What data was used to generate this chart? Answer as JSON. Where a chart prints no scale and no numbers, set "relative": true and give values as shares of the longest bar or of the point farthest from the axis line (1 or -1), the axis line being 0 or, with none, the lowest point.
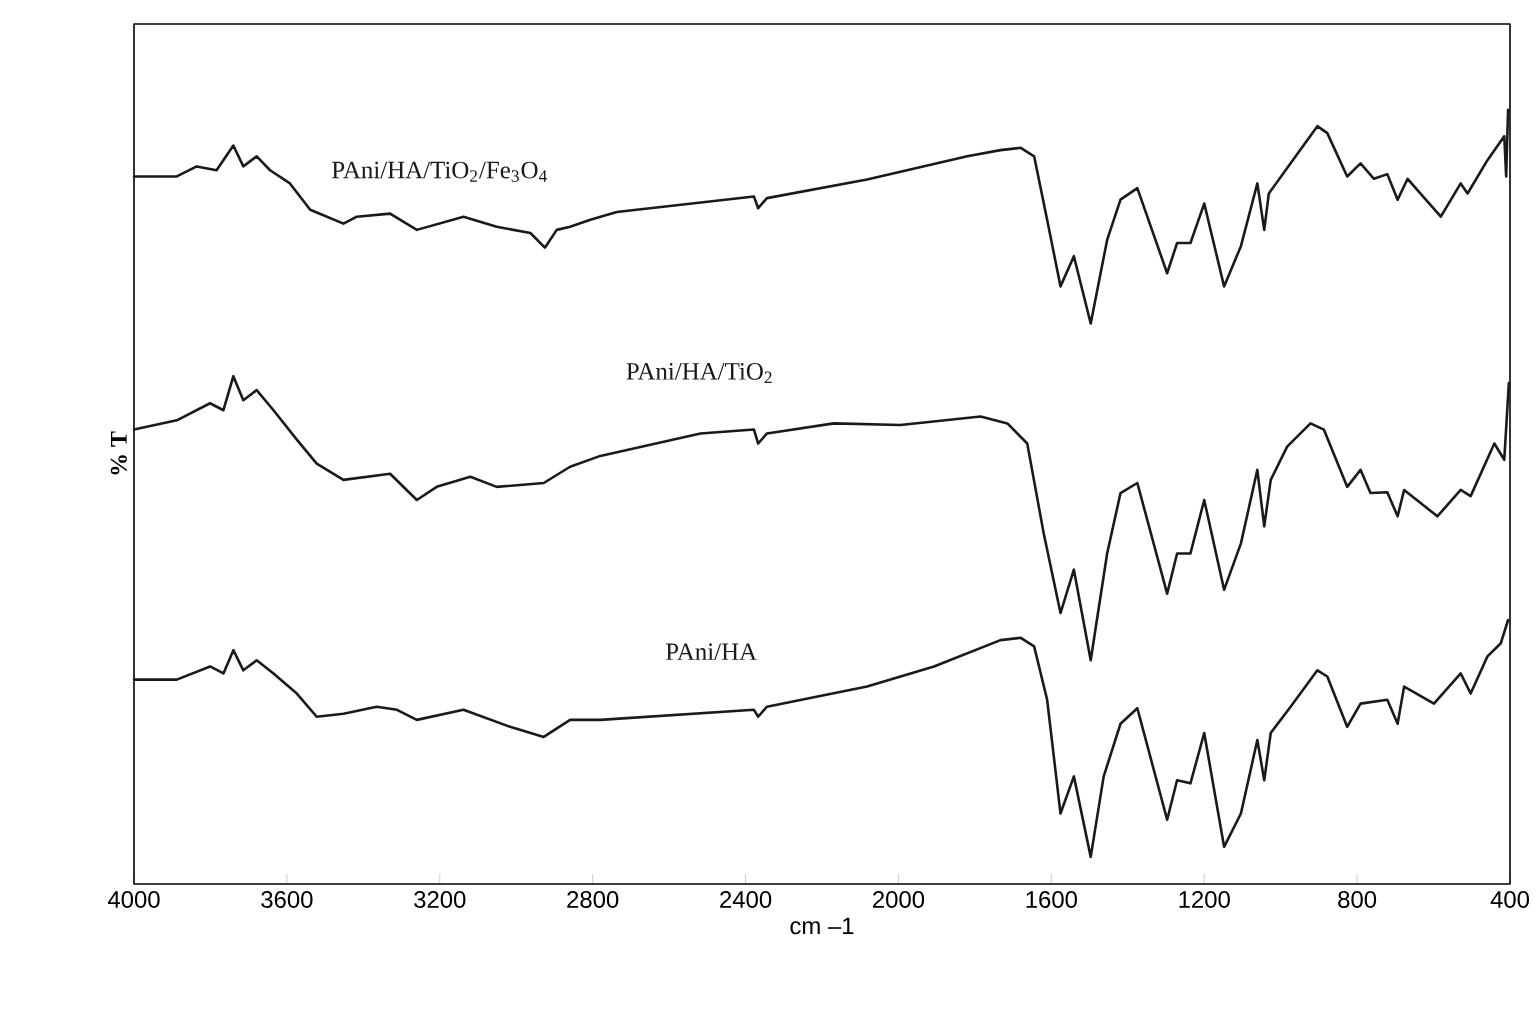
{
  "chart_data": {
    "type": "line",
    "relative": true,
    "xlabel": "cm –1",
    "ylabel": "% T",
    "xlim": [
      4000,
      400
    ],
    "xticks": [
      4000,
      3600,
      3200,
      2800,
      2400,
      2000,
      1600,
      1200,
      800,
      400
    ],
    "series": [
      {
        "name": "PAni/HA/TiO$_{2}$/Fe$_{3}$O$_{4}$",
        "color": "#1a1a1a",
        "x": [
          4000,
          3888,
          3836,
          3784,
          3740,
          3714,
          3679,
          3644,
          3592,
          3539,
          3452,
          3417,
          3330,
          3260,
          3138,
          3051,
          2963,
          2925,
          2894,
          2859,
          2806,
          2737,
          2378,
          2367,
          2344,
          2082,
          1820,
          1733,
          1680,
          1645,
          1611,
          1576,
          1541,
          1497,
          1454,
          1419,
          1375,
          1297,
          1271,
          1236,
          1200,
          1148,
          1104,
          1061,
          1043,
          1031,
          974,
          904,
          878,
          826,
          791,
          756,
          721,
          694,
          668,
          581,
          529,
          511,
          459,
          415,
          410,
          405
        ],
        "values": [
          0.914,
          0.914,
          0.927,
          0.922,
          0.954,
          0.927,
          0.94,
          0.922,
          0.905,
          0.871,
          0.853,
          0.862,
          0.866,
          0.845,
          0.862,
          0.849,
          0.841,
          0.822,
          0.845,
          0.849,
          0.858,
          0.868,
          0.888,
          0.873,
          0.886,
          0.91,
          0.94,
          0.948,
          0.951,
          0.94,
          0.858,
          0.772,
          0.811,
          0.724,
          0.832,
          0.884,
          0.899,
          0.789,
          0.828,
          0.828,
          0.879,
          0.772,
          0.824,
          0.905,
          0.845,
          0.892,
          0.931,
          0.979,
          0.97,
          0.914,
          0.931,
          0.911,
          0.917,
          0.884,
          0.911,
          0.862,
          0.905,
          0.892,
          0.935,
          0.966,
          0.914,
          1
        ]
      },
      {
        "name": "PAni/HA/TiO$_{2}$",
        "color": "#1a1a1a",
        "x": [
          4000,
          3888,
          3801,
          3766,
          3740,
          3714,
          3679,
          3635,
          3574,
          3522,
          3452,
          3330,
          3260,
          3208,
          3120,
          3051,
          2928,
          2859,
          2780,
          2518,
          2378,
          2367,
          2344,
          2169,
          1995,
          1785,
          1715,
          1663,
          1620,
          1576,
          1541,
          1497,
          1454,
          1419,
          1375,
          1297,
          1271,
          1236,
          1200,
          1148,
          1104,
          1061,
          1043,
          1026,
          983,
          922,
          887,
          826,
          791,
          765,
          721,
          694,
          677,
          590,
          529,
          503,
          441,
          415,
          403
        ],
        "values": [
          0.587,
          0.599,
          0.621,
          0.612,
          0.656,
          0.625,
          0.638,
          0.612,
          0.574,
          0.543,
          0.522,
          0.53,
          0.496,
          0.513,
          0.526,
          0.513,
          0.518,
          0.539,
          0.553,
          0.582,
          0.587,
          0.569,
          0.582,
          0.595,
          0.593,
          0.604,
          0.595,
          0.569,
          0.453,
          0.35,
          0.406,
          0.289,
          0.427,
          0.505,
          0.518,
          0.375,
          0.427,
          0.427,
          0.496,
          0.38,
          0.44,
          0.535,
          0.462,
          0.522,
          0.565,
          0.595,
          0.587,
          0.513,
          0.535,
          0.505,
          0.506,
          0.475,
          0.509,
          0.475,
          0.509,
          0.501,
          0.569,
          0.548,
          0.647
        ]
      },
      {
        "name": "PAni/HA",
        "color": "#1a1a1a",
        "x": [
          4000,
          3888,
          3801,
          3766,
          3740,
          3714,
          3679,
          3635,
          3574,
          3522,
          3452,
          3365,
          3312,
          3260,
          3138,
          3016,
          2928,
          2859,
          2780,
          2378,
          2367,
          2344,
          2082,
          1907,
          1733,
          1680,
          1645,
          1611,
          1576,
          1541,
          1497,
          1463,
          1419,
          1375,
          1297,
          1271,
          1236,
          1200,
          1148,
          1104,
          1061,
          1043,
          1026,
          974,
          904,
          878,
          826,
          791,
          721,
          694,
          677,
          599,
          529,
          503,
          459,
          424,
          405
        ],
        "values": [
          0.264,
          0.264,
          0.281,
          0.272,
          0.302,
          0.276,
          0.289,
          0.272,
          0.246,
          0.216,
          0.22,
          0.229,
          0.225,
          0.212,
          0.225,
          0.203,
          0.19,
          0.212,
          0.212,
          0.225,
          0.216,
          0.229,
          0.255,
          0.281,
          0.315,
          0.318,
          0.307,
          0.238,
          0.091,
          0.139,
          0.035,
          0.139,
          0.207,
          0.227,
          0.083,
          0.134,
          0.13,
          0.195,
          0.048,
          0.091,
          0.186,
          0.134,
          0.195,
          0.229,
          0.276,
          0.268,
          0.203,
          0.233,
          0.238,
          0.207,
          0.255,
          0.233,
          0.272,
          0.246,
          0.294,
          0.311,
          0.341
        ]
      }
    ]
  }
}
